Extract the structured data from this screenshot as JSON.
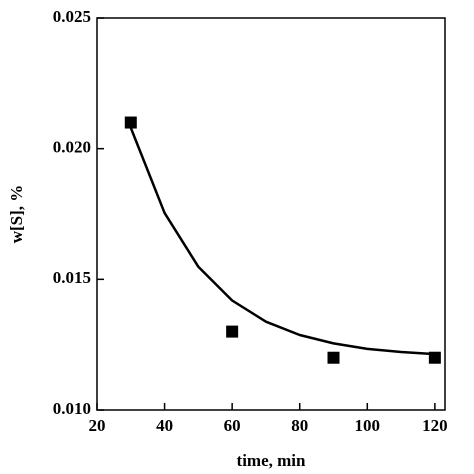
{
  "chart_data": {
    "type": "scatter",
    "xlabel": "time, min",
    "ylabel": "w[S], %",
    "xlim": [
      20,
      123
    ],
    "ylim": [
      0.01,
      0.025
    ],
    "xticks": [
      20,
      40,
      60,
      80,
      100,
      120
    ],
    "yticks": [
      {
        "value": 0.01,
        "label": "0.010"
      },
      0.015,
      {
        "value": 0.02,
        "label": "0.020"
      },
      0.025
    ],
    "series": [
      {
        "color": "#000000",
        "marker": "square",
        "x": [
          30,
          60,
          90,
          120
        ],
        "values": [
          0.021,
          0.013,
          0.012,
          0.012
        ]
      },
      {
        "color": "#000000",
        "marker": "line",
        "x": [
          30,
          40,
          50,
          60,
          70,
          80,
          90,
          100,
          110,
          120
        ],
        "values": [
          0.0208,
          0.01754,
          0.01548,
          0.01419,
          0.01338,
          0.01287,
          0.01255,
          0.01234,
          0.01222,
          0.01214
        ]
      }
    ]
  }
}
